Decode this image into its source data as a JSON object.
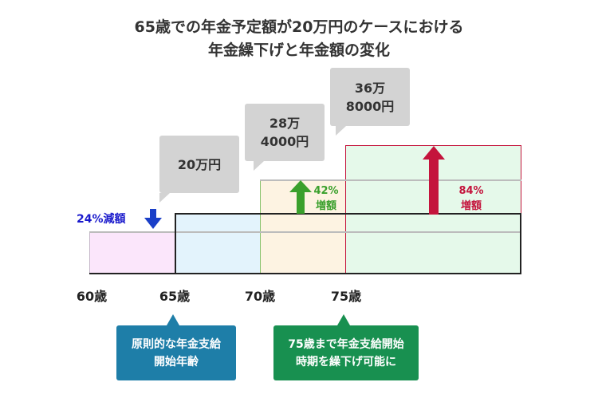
{
  "title": {
    "line1": "65歳での年金予定額が20万円のケースにおける",
    "line2": "年金繰下げと年金額の変化"
  },
  "callouts": {
    "amount_65": "20万円",
    "amount_70": "28万\n4000円",
    "amount_75": "36万\n8000円"
  },
  "changes": {
    "reduction": "24%減額",
    "increase_70": "42%\n増額",
    "increase_75": "84%\n増額"
  },
  "ages": [
    "60歳",
    "65歳",
    "70歳",
    "75歳"
  ],
  "notes": {
    "standard": "原則的な年金支給\n開始年齢",
    "deferral": "75歳まで年金支給開始\n時期を繰下げ可能に"
  },
  "colors": {
    "reduction_text": "#1a1acc",
    "increase_70": "#3aa02c",
    "increase_75": "#c4143c",
    "note_blue": "#1e7ea8",
    "note_green": "#189050",
    "callout_gray": "#d3d3d3"
  },
  "chart_data": {
    "type": "area",
    "ages": [
      60,
      65,
      70,
      75
    ],
    "amount_at_65_yen": 200000,
    "amount_at_70_yen": 284000,
    "amount_at_75_yen": 368000,
    "rate_change_percent": {
      "60": -24,
      "70": 42,
      "75": 84
    }
  }
}
